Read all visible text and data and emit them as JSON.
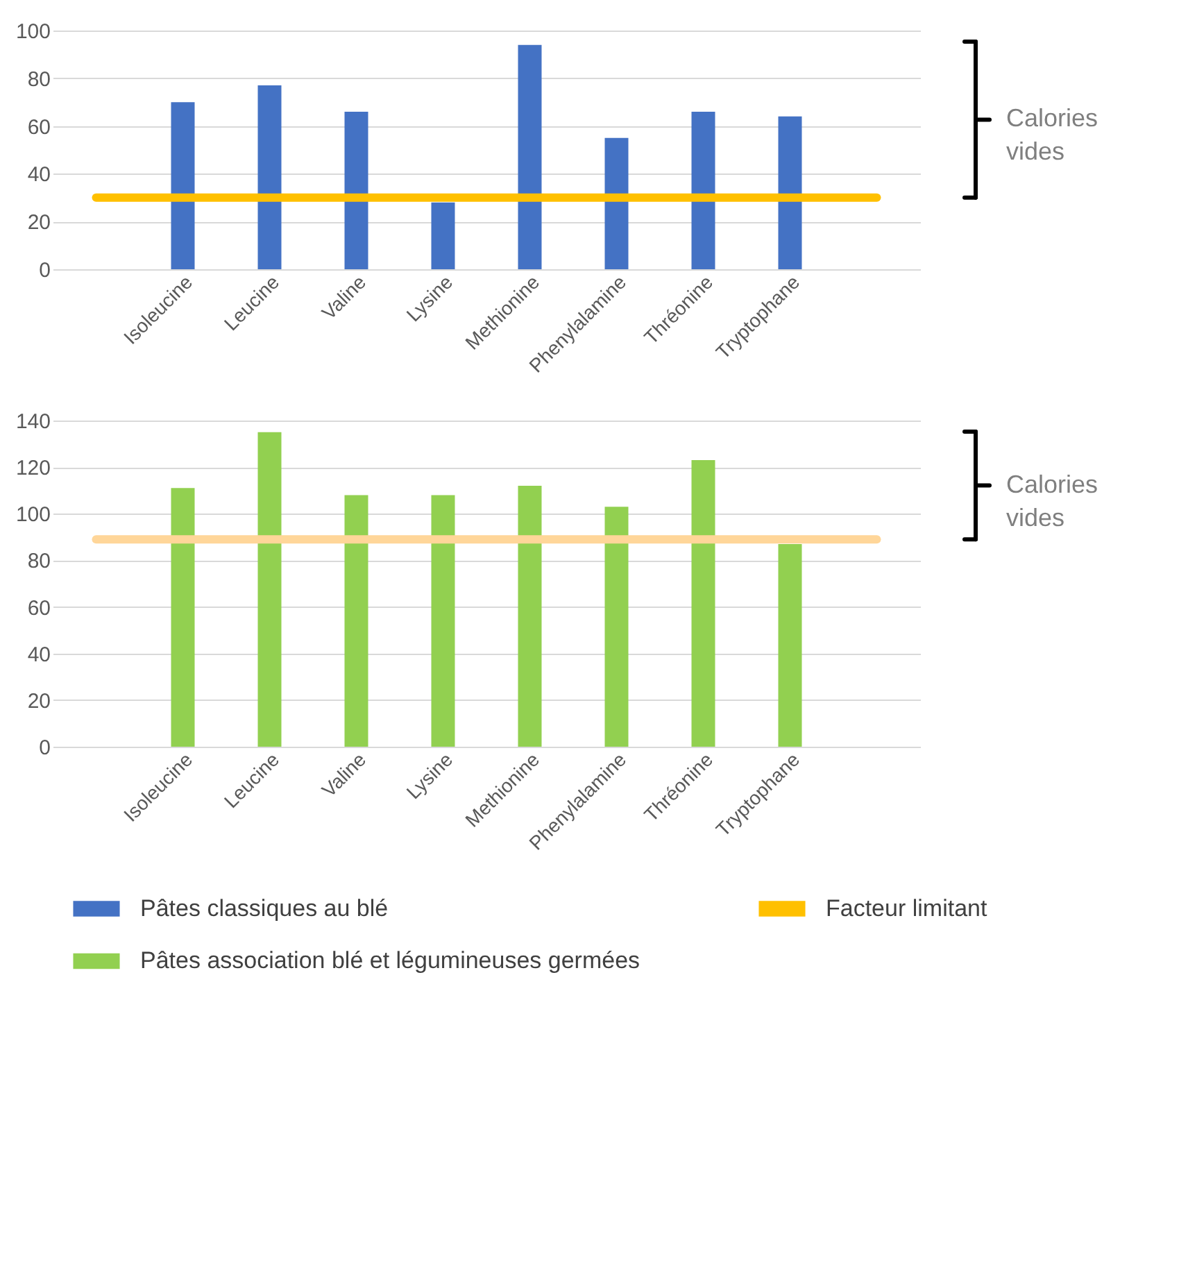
{
  "chart_data": [
    {
      "type": "bar",
      "categories": [
        null,
        "Isoleucine",
        "Leucine",
        "Valine",
        "Lysine",
        "Methionine",
        "Phenylalamine",
        "Thréonine",
        "Tryptophane",
        null
      ],
      "series": [
        {
          "name": "Pâtes classiques au blé",
          "color": "#4472c4",
          "values": [
            null,
            70,
            77,
            66,
            28,
            94,
            55,
            66,
            64,
            null
          ]
        },
        {
          "name": "Facteur limitant",
          "type": "line",
          "color": "#ffc000",
          "values": [
            30,
            30,
            30,
            30,
            30,
            30,
            30,
            30,
            30,
            30
          ]
        }
      ],
      "ylim": [
        0,
        100
      ],
      "yticks": [
        0,
        20,
        40,
        60,
        80,
        100
      ],
      "grid": "y",
      "legend": "bottom",
      "annotations": [
        "Calories vides"
      ]
    },
    {
      "type": "bar",
      "categories": [
        null,
        "Isoleucine",
        "Leucine",
        "Valine",
        "Lysine",
        "Methionine",
        "Phenylalamine",
        "Thréonine",
        "Tryptophane",
        null
      ],
      "series": [
        {
          "name": "Pâtes association blé et légumineuses germées",
          "color": "#92d050",
          "values": [
            null,
            111,
            135,
            108,
            108,
            112,
            103,
            123,
            87,
            null
          ]
        },
        {
          "type": "line",
          "color": "#ffd699",
          "values": [
            89,
            89,
            89,
            89,
            89,
            89,
            89,
            89,
            89,
            89
          ]
        }
      ],
      "ylim": [
        0,
        140
      ],
      "yticks": [
        0,
        20,
        40,
        60,
        80,
        100,
        120,
        140
      ],
      "grid": "y",
      "legend": "bottom",
      "annotations": [
        "Calories vides"
      ]
    }
  ]
}
